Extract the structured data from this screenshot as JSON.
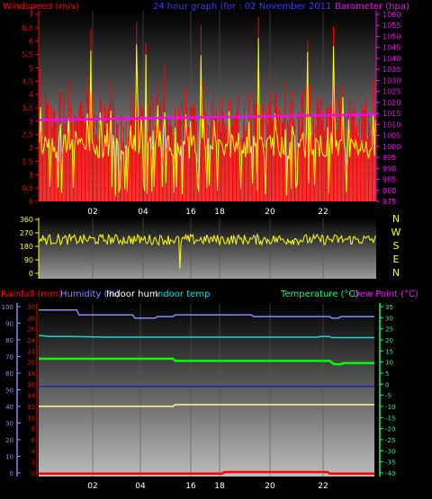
{
  "header": {
    "wind_label": "Windspeed (m/s)",
    "title": "24 hour graph (for : 02 November 2011",
    "baro_label": "Barometer (hpa)"
  },
  "bottom_header": {
    "rain_label": "Rainfall (mm)",
    "hum_label": "Humidity (%)",
    "indoor_hum_label": "Indoor hum",
    "indoor_temp_label": "Indoor temp",
    "temp_label": "Temperature (°C)",
    "dew_label": "Dew Point (°C)"
  },
  "colors": {
    "wind_bar": "#ff0000",
    "wind_line": "#ffff00",
    "baro": "#ff00ff",
    "direction": "#ffff00",
    "rain": "#ff0000",
    "humidity": "#8888ff",
    "indoor_hum": "#2222aa",
    "indoor_temp": "#ffff88",
    "temp": "#00ff00",
    "dew": "#00dddd",
    "axis_left": "#ff0000",
    "axis_right": "#ff00ff",
    "axis_hum": "#8888ff",
    "axis_temp": "#00ff88"
  },
  "chart_data": [
    {
      "type": "line",
      "subject": "wind_and_barometer",
      "x_ticks": [
        "02",
        "04",
        "16",
        "18",
        "20",
        "22"
      ],
      "wind_y_ticks": [
        "7",
        "6.5",
        "6",
        "5.5",
        "5",
        "4.5",
        "4",
        "3.5",
        "3",
        "2.5",
        "2",
        "1.5",
        "1",
        "0.5",
        "0"
      ],
      "baro_y_ticks": [
        "1060",
        "1055",
        "1050",
        "1045",
        "1040",
        "1035",
        "1030",
        "1025",
        "1020",
        "1015",
        "1010",
        "1005",
        "1000",
        "995",
        "990",
        "985",
        "980",
        "975"
      ],
      "wind_ylim": [
        0,
        7
      ],
      "baro_ylim": [
        975,
        1060
      ],
      "barometer": {
        "x_hours": [
          0,
          24
        ],
        "values": [
          1012,
          1014.5
        ]
      },
      "wind_samples": 288
    },
    {
      "type": "line",
      "subject": "wind_direction",
      "y_ticks": [
        "360",
        "270",
        "180",
        "90",
        "0"
      ],
      "compass": [
        "N",
        "W",
        "S",
        "E",
        "N"
      ],
      "ylim": [
        0,
        360
      ],
      "direction_mean": 225
    },
    {
      "type": "line",
      "subject": "rain_humidity_temperature",
      "x_ticks": [
        "02",
        "04",
        "16",
        "18",
        "20",
        "22"
      ],
      "hum_ticks": [
        "100",
        "90",
        "80",
        "70",
        "60",
        "50",
        "40",
        "30",
        "20",
        "10",
        "0"
      ],
      "rain_ticks": [
        "30",
        "28",
        "26",
        "24",
        "22",
        "20",
        "18",
        "16",
        "14",
        "12",
        "10",
        "8",
        "6",
        "4",
        "2",
        "0"
      ],
      "temp_ticks": [
        "35",
        "30",
        "25",
        "20",
        "15",
        "10",
        "5",
        "0",
        "-5",
        "-10",
        "-15",
        "-20",
        "-25",
        "-30",
        "-35",
        "-40"
      ],
      "hum_ylim": [
        0,
        100
      ],
      "temp_ylim": [
        -40,
        35
      ],
      "series": [
        {
          "name": "Humidity (%)",
          "points": [
            [
              0,
              98
            ],
            [
              1.7,
              98
            ],
            [
              1.8,
              95
            ],
            [
              4.2,
              95
            ],
            [
              4.3,
              93
            ],
            [
              5.2,
              93
            ],
            [
              5.3,
              94
            ],
            [
              6.0,
              94
            ],
            [
              6.1,
              95
            ],
            [
              9.5,
              95
            ],
            [
              9.6,
              94
            ],
            [
              13.0,
              94
            ],
            [
              13.1,
              93
            ],
            [
              13.4,
              93
            ],
            [
              13.5,
              94
            ],
            [
              15,
              94
            ]
          ]
        },
        {
          "name": "Indoor hum",
          "points": [
            [
              0,
              52
            ],
            [
              15,
              52
            ]
          ]
        },
        {
          "name": "Indoor temp",
          "points": [
            [
              0,
              40
            ],
            [
              6,
              40
            ],
            [
              6.1,
              41
            ],
            [
              15,
              41
            ]
          ]
        },
        {
          "name": "Temperature (°C)",
          "points": [
            [
              0,
              11.5
            ],
            [
              6.0,
              11.5
            ],
            [
              6.1,
              10.5
            ],
            [
              13.0,
              10.5
            ],
            [
              13.2,
              9
            ],
            [
              13.5,
              9
            ],
            [
              13.6,
              9.5
            ],
            [
              15,
              9.5
            ]
          ]
        },
        {
          "name": "Dew Point (°C)",
          "points": [
            [
              0,
              22
            ],
            [
              0.5,
              21.5
            ],
            [
              1.5,
              21.5
            ],
            [
              3,
              21.2
            ],
            [
              12.5,
              21.2
            ],
            [
              12.6,
              21.5
            ],
            [
              13.0,
              21.5
            ],
            [
              13.1,
              21.0
            ],
            [
              15,
              21.0
            ]
          ]
        },
        {
          "name": "Rainfall (mm)",
          "points": [
            [
              0,
              0.2
            ],
            [
              8.2,
              0.2
            ],
            [
              8.3,
              0.5
            ],
            [
              12.9,
              0.5
            ],
            [
              13.0,
              0.2
            ],
            [
              15,
              0.2
            ]
          ]
        }
      ]
    }
  ]
}
